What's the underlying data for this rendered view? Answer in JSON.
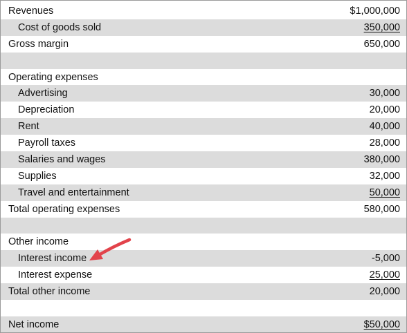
{
  "accent_arrow_color": "#e2434b",
  "rows": [
    {
      "label": "Revenues",
      "amount": "$1,000,000",
      "indent": false,
      "shaded": false,
      "underline": false
    },
    {
      "label": "Cost of goods sold",
      "amount": "350,000",
      "indent": true,
      "shaded": true,
      "underline": true
    },
    {
      "label": "Gross margin",
      "amount": "650,000",
      "indent": false,
      "shaded": false,
      "underline": false
    },
    {
      "label": "",
      "amount": "",
      "indent": false,
      "shaded": true,
      "underline": false
    },
    {
      "label": "Operating expenses",
      "amount": "",
      "indent": false,
      "shaded": false,
      "underline": false
    },
    {
      "label": "Advertising",
      "amount": "30,000",
      "indent": true,
      "shaded": true,
      "underline": false
    },
    {
      "label": "Depreciation",
      "amount": "20,000",
      "indent": true,
      "shaded": false,
      "underline": false
    },
    {
      "label": "Rent",
      "amount": "40,000",
      "indent": true,
      "shaded": true,
      "underline": false
    },
    {
      "label": "Payroll taxes",
      "amount": "28,000",
      "indent": true,
      "shaded": false,
      "underline": false
    },
    {
      "label": "Salaries and wages",
      "amount": "380,000",
      "indent": true,
      "shaded": true,
      "underline": false
    },
    {
      "label": "Supplies",
      "amount": "32,000",
      "indent": true,
      "shaded": false,
      "underline": false
    },
    {
      "label": "Travel and entertainment",
      "amount": "50,000",
      "indent": true,
      "shaded": true,
      "underline": true
    },
    {
      "label": "Total operating expenses",
      "amount": "580,000",
      "indent": false,
      "shaded": false,
      "underline": false
    },
    {
      "label": "",
      "amount": "",
      "indent": false,
      "shaded": true,
      "underline": false
    },
    {
      "label": "Other income",
      "amount": "",
      "indent": false,
      "shaded": false,
      "underline": false
    },
    {
      "label": "Interest income",
      "amount": "-5,000",
      "indent": true,
      "shaded": true,
      "underline": false
    },
    {
      "label": "Interest expense",
      "amount": "25,000",
      "indent": true,
      "shaded": false,
      "underline": true
    },
    {
      "label": "Total other income",
      "amount": "20,000",
      "indent": false,
      "shaded": true,
      "underline": false
    },
    {
      "label": "",
      "amount": "",
      "indent": false,
      "shaded": false,
      "underline": false
    },
    {
      "label": "Net income",
      "amount": "$50,000",
      "indent": false,
      "shaded": true,
      "underline": true
    }
  ]
}
